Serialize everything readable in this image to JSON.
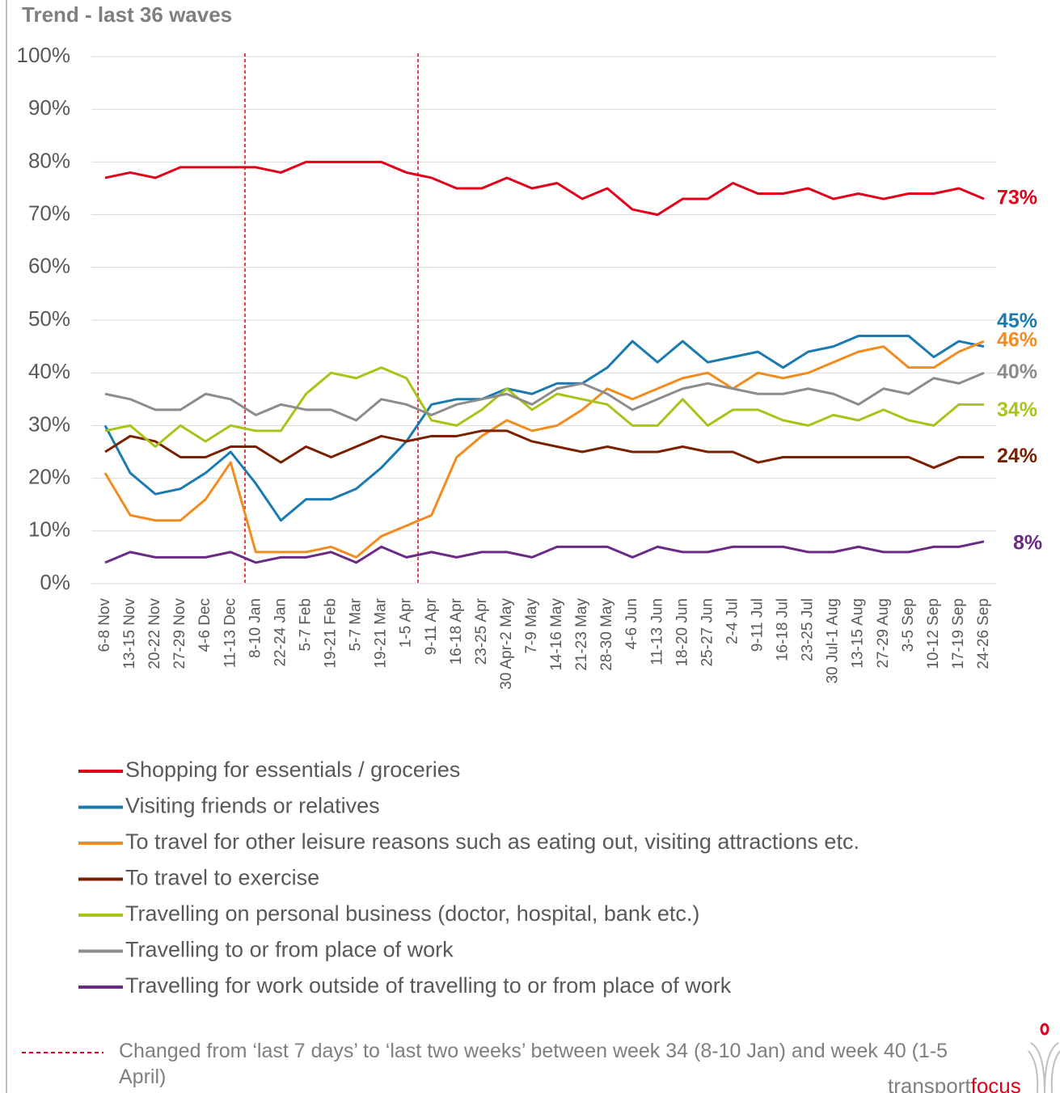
{
  "chart_data": {
    "type": "line",
    "title": "Trend - last 36 waves",
    "categories": [
      "6-8 Nov",
      "13-15 Nov",
      "20-22 Nov",
      "27-29 Nov",
      "4-6 Dec",
      "11-13 Dec",
      "8-10 Jan",
      "22-24 Jan",
      "5-7 Feb",
      "19-21 Feb",
      "5-7 Mar",
      "19-21 Mar",
      "1-5 Apr",
      "9-11 Apr",
      "16-18 Apr",
      "23-25 Apr",
      "30 Apr-2 May",
      "7-9 May",
      "14-16 May",
      "21-23 May",
      "28-30 May",
      "4-6 Jun",
      "11-13 Jun",
      "18-20 Jun",
      "25-27 Jun",
      "2-4 Jul",
      "9-11 Jul",
      "16-18 Jul",
      "23-25 Jul",
      "30 Jul-1 Aug",
      "13-15 Aug",
      "27-29 Aug",
      "3-5 Sep",
      "10-12 Sep",
      "17-19 Sep",
      "24-26 Sep"
    ],
    "series": [
      {
        "name": "Shopping for essentials / groceries",
        "color": "#e2001a",
        "values": [
          77,
          78,
          77,
          79,
          79,
          79,
          79,
          78,
          80,
          80,
          80,
          80,
          78,
          77,
          75,
          75,
          77,
          75,
          76,
          73,
          75,
          71,
          70,
          73,
          73,
          76,
          74,
          74,
          75,
          73,
          74,
          73,
          74,
          74,
          75,
          73
        ],
        "value_labels": [
          null,
          null,
          null,
          null,
          null,
          null,
          null,
          null,
          null,
          null,
          null,
          null,
          null,
          null,
          null,
          null,
          null,
          null,
          null,
          null,
          null,
          null,
          null,
          null,
          null,
          null,
          null,
          null,
          null,
          null,
          null,
          null,
          null,
          null,
          null,
          "73%"
        ]
      },
      {
        "name": "Visiting friends or relatives",
        "color": "#1a7bb0",
        "values": [
          30,
          21,
          17,
          18,
          21,
          25,
          19,
          12,
          16,
          16,
          18,
          22,
          27,
          34,
          35,
          35,
          37,
          36,
          38,
          38,
          41,
          46,
          42,
          46,
          42,
          43,
          44,
          41,
          44,
          45,
          47,
          47,
          47,
          43,
          46,
          45
        ],
        "value_labels": [
          null,
          null,
          null,
          null,
          null,
          null,
          null,
          null,
          null,
          null,
          null,
          null,
          null,
          null,
          null,
          null,
          null,
          null,
          null,
          null,
          null,
          null,
          null,
          null,
          null,
          null,
          null,
          null,
          null,
          null,
          null,
          null,
          null,
          null,
          null,
          "45%"
        ]
      },
      {
        "name": "To travel for other leisure reasons such as eating out, visiting attractions etc.",
        "color": "#f28c1e",
        "values": [
          21,
          13,
          12,
          12,
          16,
          23,
          6,
          6,
          6,
          7,
          5,
          9,
          11,
          13,
          24,
          28,
          31,
          29,
          30,
          33,
          37,
          35,
          37,
          39,
          40,
          37,
          40,
          39,
          40,
          42,
          44,
          45,
          41,
          41,
          44,
          46
        ],
        "value_labels": [
          null,
          null,
          null,
          null,
          null,
          null,
          null,
          null,
          null,
          null,
          null,
          null,
          null,
          null,
          null,
          null,
          null,
          null,
          null,
          null,
          null,
          null,
          null,
          null,
          null,
          null,
          null,
          null,
          null,
          null,
          null,
          null,
          null,
          null,
          null,
          "46%"
        ]
      },
      {
        "name": "To travel to exercise",
        "color": "#7b2000",
        "values": [
          25,
          28,
          27,
          24,
          24,
          26,
          26,
          23,
          26,
          24,
          26,
          28,
          27,
          28,
          28,
          29,
          29,
          27,
          26,
          25,
          26,
          25,
          25,
          26,
          25,
          25,
          23,
          24,
          24,
          24,
          24,
          24,
          24,
          22,
          24,
          24
        ],
        "value_labels": [
          null,
          null,
          null,
          null,
          null,
          null,
          null,
          null,
          null,
          null,
          null,
          null,
          null,
          null,
          null,
          null,
          null,
          null,
          null,
          null,
          null,
          null,
          null,
          null,
          null,
          null,
          null,
          null,
          null,
          null,
          null,
          null,
          null,
          null,
          null,
          "24%"
        ]
      },
      {
        "name": "Travelling on personal business (doctor, hospital, bank etc.)",
        "color": "#a8c418",
        "values": [
          29,
          30,
          26,
          30,
          27,
          30,
          29,
          29,
          36,
          40,
          39,
          41,
          39,
          31,
          30,
          33,
          37,
          33,
          36,
          35,
          34,
          30,
          30,
          35,
          30,
          33,
          33,
          31,
          30,
          32,
          31,
          33,
          31,
          30,
          34,
          34
        ],
        "value_labels": [
          null,
          null,
          null,
          null,
          null,
          null,
          null,
          null,
          null,
          null,
          null,
          null,
          null,
          null,
          null,
          null,
          null,
          null,
          null,
          null,
          null,
          null,
          null,
          null,
          null,
          null,
          null,
          null,
          null,
          null,
          null,
          null,
          null,
          null,
          null,
          "34%"
        ]
      },
      {
        "name": "Travelling to or from place of work",
        "color": "#8c8c8c",
        "values": [
          36,
          35,
          33,
          33,
          36,
          35,
          32,
          34,
          33,
          33,
          31,
          35,
          34,
          32,
          34,
          35,
          36,
          34,
          37,
          38,
          36,
          33,
          35,
          37,
          38,
          37,
          36,
          36,
          37,
          36,
          34,
          37,
          36,
          39,
          38,
          40
        ],
        "value_labels": [
          null,
          null,
          null,
          null,
          null,
          null,
          null,
          null,
          null,
          null,
          null,
          null,
          null,
          null,
          null,
          null,
          null,
          null,
          null,
          null,
          null,
          null,
          null,
          null,
          null,
          null,
          null,
          null,
          null,
          null,
          null,
          null,
          null,
          null,
          null,
          "40%"
        ]
      },
      {
        "name": "Travelling for work outside of travelling to or from place of work",
        "color": "#6a2a86",
        "values": [
          4,
          6,
          5,
          5,
          5,
          6,
          4,
          5,
          5,
          6,
          4,
          7,
          5,
          6,
          5,
          6,
          6,
          5,
          7,
          7,
          7,
          5,
          7,
          6,
          6,
          7,
          7,
          7,
          6,
          6,
          7,
          6,
          6,
          7,
          7,
          8
        ],
        "value_labels": [
          null,
          null,
          null,
          null,
          null,
          null,
          null,
          null,
          null,
          null,
          null,
          null,
          null,
          null,
          null,
          null,
          null,
          null,
          null,
          null,
          null,
          null,
          null,
          null,
          null,
          null,
          null,
          null,
          null,
          null,
          null,
          null,
          null,
          null,
          null,
          "8%"
        ]
      }
    ],
    "ylim": [
      0,
      100
    ],
    "yticks": [
      {
        "value": 0,
        "label": "0%"
      },
      {
        "value": 10,
        "label": "10%"
      },
      {
        "value": 20,
        "label": "20%"
      },
      {
        "value": 30,
        "label": "30%"
      },
      {
        "value": 40,
        "label": "40%"
      },
      {
        "value": 50,
        "label": "50%"
      },
      {
        "value": 60,
        "label": "60%"
      },
      {
        "value": 70,
        "label": "70%"
      },
      {
        "value": 80,
        "label": "80%"
      },
      {
        "value": 90,
        "label": "90%"
      },
      {
        "value": 100,
        "label": "100%"
      }
    ],
    "grid": true,
    "footnote": "Changed from ‘last 7 days’ to ‘last two weeks’ between week 34 (8-10 Jan) and week 40 (1-5 April)"
  },
  "logo": [
    "transport",
    "focus"
  ]
}
